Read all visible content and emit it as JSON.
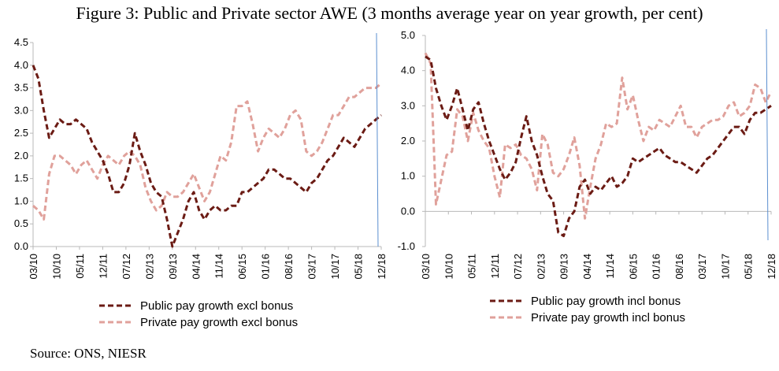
{
  "title": "Figure 3: Public and Private sector AWE (3 months average year on year growth, per cent)",
  "source": "Source: ONS, NIESR",
  "colors": {
    "public": "#6b1b14",
    "private": "#e0a19b",
    "vline": "#5b8fd0",
    "axis": "#b8b8b8"
  },
  "chart_data": [
    {
      "type": "line",
      "ylim": [
        0,
        4.5
      ],
      "ytick_labels": [
        "0.0",
        "0.5",
        "1.0",
        "1.5",
        "2.0",
        "2.5",
        "3.0",
        "3.5",
        "4.0",
        "4.5"
      ],
      "xtick_labels": [
        "03/10",
        "10/10",
        "05/11",
        "12/11",
        "07/12",
        "02/13",
        "09/13",
        "04/14",
        "11/14",
        "06/15",
        "01/16",
        "08/16",
        "03/17",
        "10/17",
        "05/18",
        "12/18"
      ],
      "vline_x": 15,
      "legend_placement": "bottom",
      "series": [
        {
          "name": "Public pay growth excl bonus",
          "style": "dashed",
          "values": [
            4.0,
            3.7,
            3.0,
            2.4,
            2.6,
            2.8,
            2.7,
            2.7,
            2.8,
            2.7,
            2.6,
            2.3,
            2.1,
            1.9,
            1.6,
            1.2,
            1.2,
            1.4,
            1.8,
            2.5,
            2.1,
            1.8,
            1.4,
            1.2,
            1.1,
            0.6,
            0.0,
            0.3,
            0.6,
            1.0,
            1.2,
            0.8,
            0.6,
            0.8,
            0.9,
            0.8,
            0.8,
            0.9,
            0.9,
            1.2,
            1.2,
            1.3,
            1.4,
            1.5,
            1.7,
            1.7,
            1.6,
            1.5,
            1.5,
            1.4,
            1.3,
            1.2,
            1.4,
            1.5,
            1.7,
            1.9,
            2.0,
            2.2,
            2.4,
            2.3,
            2.2,
            2.4,
            2.6,
            2.7,
            2.8,
            2.9
          ]
        },
        {
          "name": "Private pay growth excl bonus",
          "style": "dashed",
          "values": [
            0.9,
            0.8,
            0.6,
            1.6,
            2.0,
            2.0,
            1.9,
            1.8,
            1.6,
            1.8,
            1.9,
            1.7,
            1.5,
            1.8,
            2.0,
            1.9,
            1.8,
            2.0,
            2.1,
            2.0,
            1.8,
            1.3,
            1.0,
            0.8,
            0.9,
            1.2,
            1.1,
            1.1,
            1.2,
            1.4,
            1.6,
            1.3,
            1.0,
            1.2,
            1.6,
            2.0,
            1.9,
            2.3,
            3.1,
            3.1,
            3.2,
            2.7,
            2.1,
            2.4,
            2.6,
            2.5,
            2.4,
            2.6,
            2.9,
            3.0,
            2.8,
            2.1,
            2.0,
            2.1,
            2.3,
            2.6,
            2.9,
            2.9,
            3.1,
            3.3,
            3.3,
            3.4,
            3.5,
            3.5,
            3.5,
            3.6
          ]
        }
      ]
    },
    {
      "type": "line",
      "ylim": [
        -1.0,
        5.0
      ],
      "ytick_labels": [
        "-1.0",
        "0.0",
        "1.0",
        "2.0",
        "3.0",
        "4.0",
        "5.0"
      ],
      "xtick_labels": [
        "03/10",
        "10/10",
        "05/11",
        "12/11",
        "07/12",
        "02/13",
        "09/13",
        "04/14",
        "11/14",
        "06/15",
        "01/16",
        "08/16",
        "03/17",
        "10/17",
        "05/18",
        "12/18"
      ],
      "vline_x": 15,
      "legend_placement": "bottom",
      "series": [
        {
          "name": "Public pay growth incl bonus",
          "style": "dashed",
          "values": [
            4.4,
            4.3,
            3.5,
            3.0,
            2.6,
            3.0,
            3.5,
            2.9,
            2.3,
            2.9,
            3.1,
            2.5,
            2.0,
            1.6,
            1.2,
            0.9,
            1.1,
            1.4,
            2.1,
            2.7,
            2.0,
            1.6,
            1.0,
            0.5,
            0.3,
            -0.6,
            -0.7,
            -0.2,
            0.0,
            0.7,
            0.9,
            0.5,
            0.7,
            0.6,
            0.8,
            1.0,
            0.7,
            0.8,
            1.0,
            1.5,
            1.4,
            1.5,
            1.6,
            1.7,
            1.8,
            1.6,
            1.5,
            1.4,
            1.4,
            1.3,
            1.2,
            1.1,
            1.3,
            1.5,
            1.6,
            1.8,
            2.0,
            2.2,
            2.4,
            2.4,
            2.2,
            2.6,
            2.8,
            2.8,
            2.9,
            3.0
          ]
        },
        {
          "name": "Private pay growth incl bonus",
          "style": "dashed",
          "values": [
            4.5,
            4.2,
            0.2,
            0.9,
            1.6,
            1.7,
            2.9,
            2.7,
            2.0,
            2.8,
            2.3,
            2.0,
            1.8,
            1.0,
            0.4,
            1.9,
            1.8,
            1.9,
            1.6,
            1.5,
            1.2,
            0.6,
            2.2,
            1.9,
            1.1,
            1.0,
            1.2,
            1.6,
            2.1,
            1.3,
            -0.2,
            0.7,
            1.5,
            1.9,
            2.5,
            2.4,
            2.5,
            3.8,
            2.9,
            3.3,
            2.6,
            2.0,
            2.4,
            2.3,
            2.6,
            2.5,
            2.4,
            2.7,
            3.0,
            2.4,
            2.4,
            2.1,
            2.4,
            2.5,
            2.6,
            2.6,
            2.7,
            3.0,
            3.1,
            2.7,
            2.8,
            3.0,
            3.6,
            3.5,
            3.1,
            3.4
          ]
        }
      ]
    }
  ]
}
